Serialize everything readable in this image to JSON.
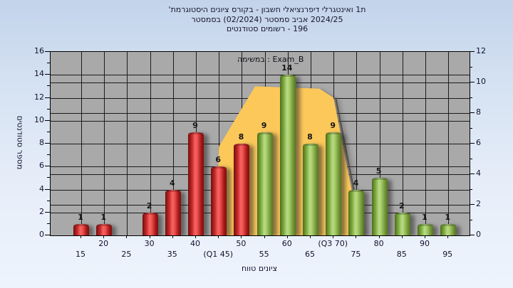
{
  "title": {
    "line1": "'היסטוגרמת ציונים בקורס - חשבון דיפרנציאלי ואינטגרלי 1ת",
    "line2": "בסמסטר (02/2024) סמסטר אביב 2024/25",
    "line3": "סטודנטים רשומים - 196",
    "registered_students": 196
  },
  "legend": {
    "label": "במשימה : Exam_B"
  },
  "colors": {
    "fail_bar": "#cc2222",
    "pass_bar": "#94c153",
    "quartile_band": "#fcc85a",
    "plot_background": "#a9a9a9",
    "gridline": "#1c1c1c",
    "text": "#15152e"
  },
  "chart_data": {
    "type": "bar",
    "title": "היסטוגרמת ציונים בקורס - חשבון דיפרנציאלי ואינטגרלי 1ת'",
    "categories": [
      15,
      20,
      25,
      30,
      35,
      40,
      45,
      50,
      55,
      60,
      65,
      70,
      75,
      80,
      85,
      90,
      95
    ],
    "values": [
      1,
      1,
      0,
      2,
      4,
      9,
      6,
      8,
      9,
      14,
      8,
      9,
      4,
      5,
      2,
      1,
      1
    ],
    "groups": [
      "fail",
      "fail",
      "fail",
      "fail",
      "fail",
      "fail",
      "fail",
      "fail",
      "pass",
      "pass",
      "pass",
      "pass",
      "pass",
      "pass",
      "pass",
      "pass",
      "pass"
    ],
    "series_name": "Exam_B",
    "x_tick_labels": [
      "15",
      "20",
      "25",
      "30",
      "35",
      "40",
      "(Q1 45)",
      "50",
      "55",
      "60",
      "65",
      "(Q3 70)",
      "75",
      "80",
      "85",
      "90",
      "95"
    ],
    "q1_label": "(Q1 45)",
    "q3_label": "(Q3 70)",
    "xlabel": "טווח ציונים",
    "ylabel": "מספר סטודנטים",
    "y_left": {
      "min": 0,
      "max": 16,
      "step": 2
    },
    "y_right": {
      "min": 0,
      "max": 12,
      "step": 2
    },
    "grid": true,
    "legend_position": "top-right-inside",
    "band_polygon": [
      [
        44.5,
        0
      ],
      [
        45,
        7.75
      ],
      [
        52.9,
        13.0
      ],
      [
        66.9,
        12.8
      ],
      [
        70,
        12.0
      ],
      [
        75.9,
        0
      ]
    ]
  }
}
